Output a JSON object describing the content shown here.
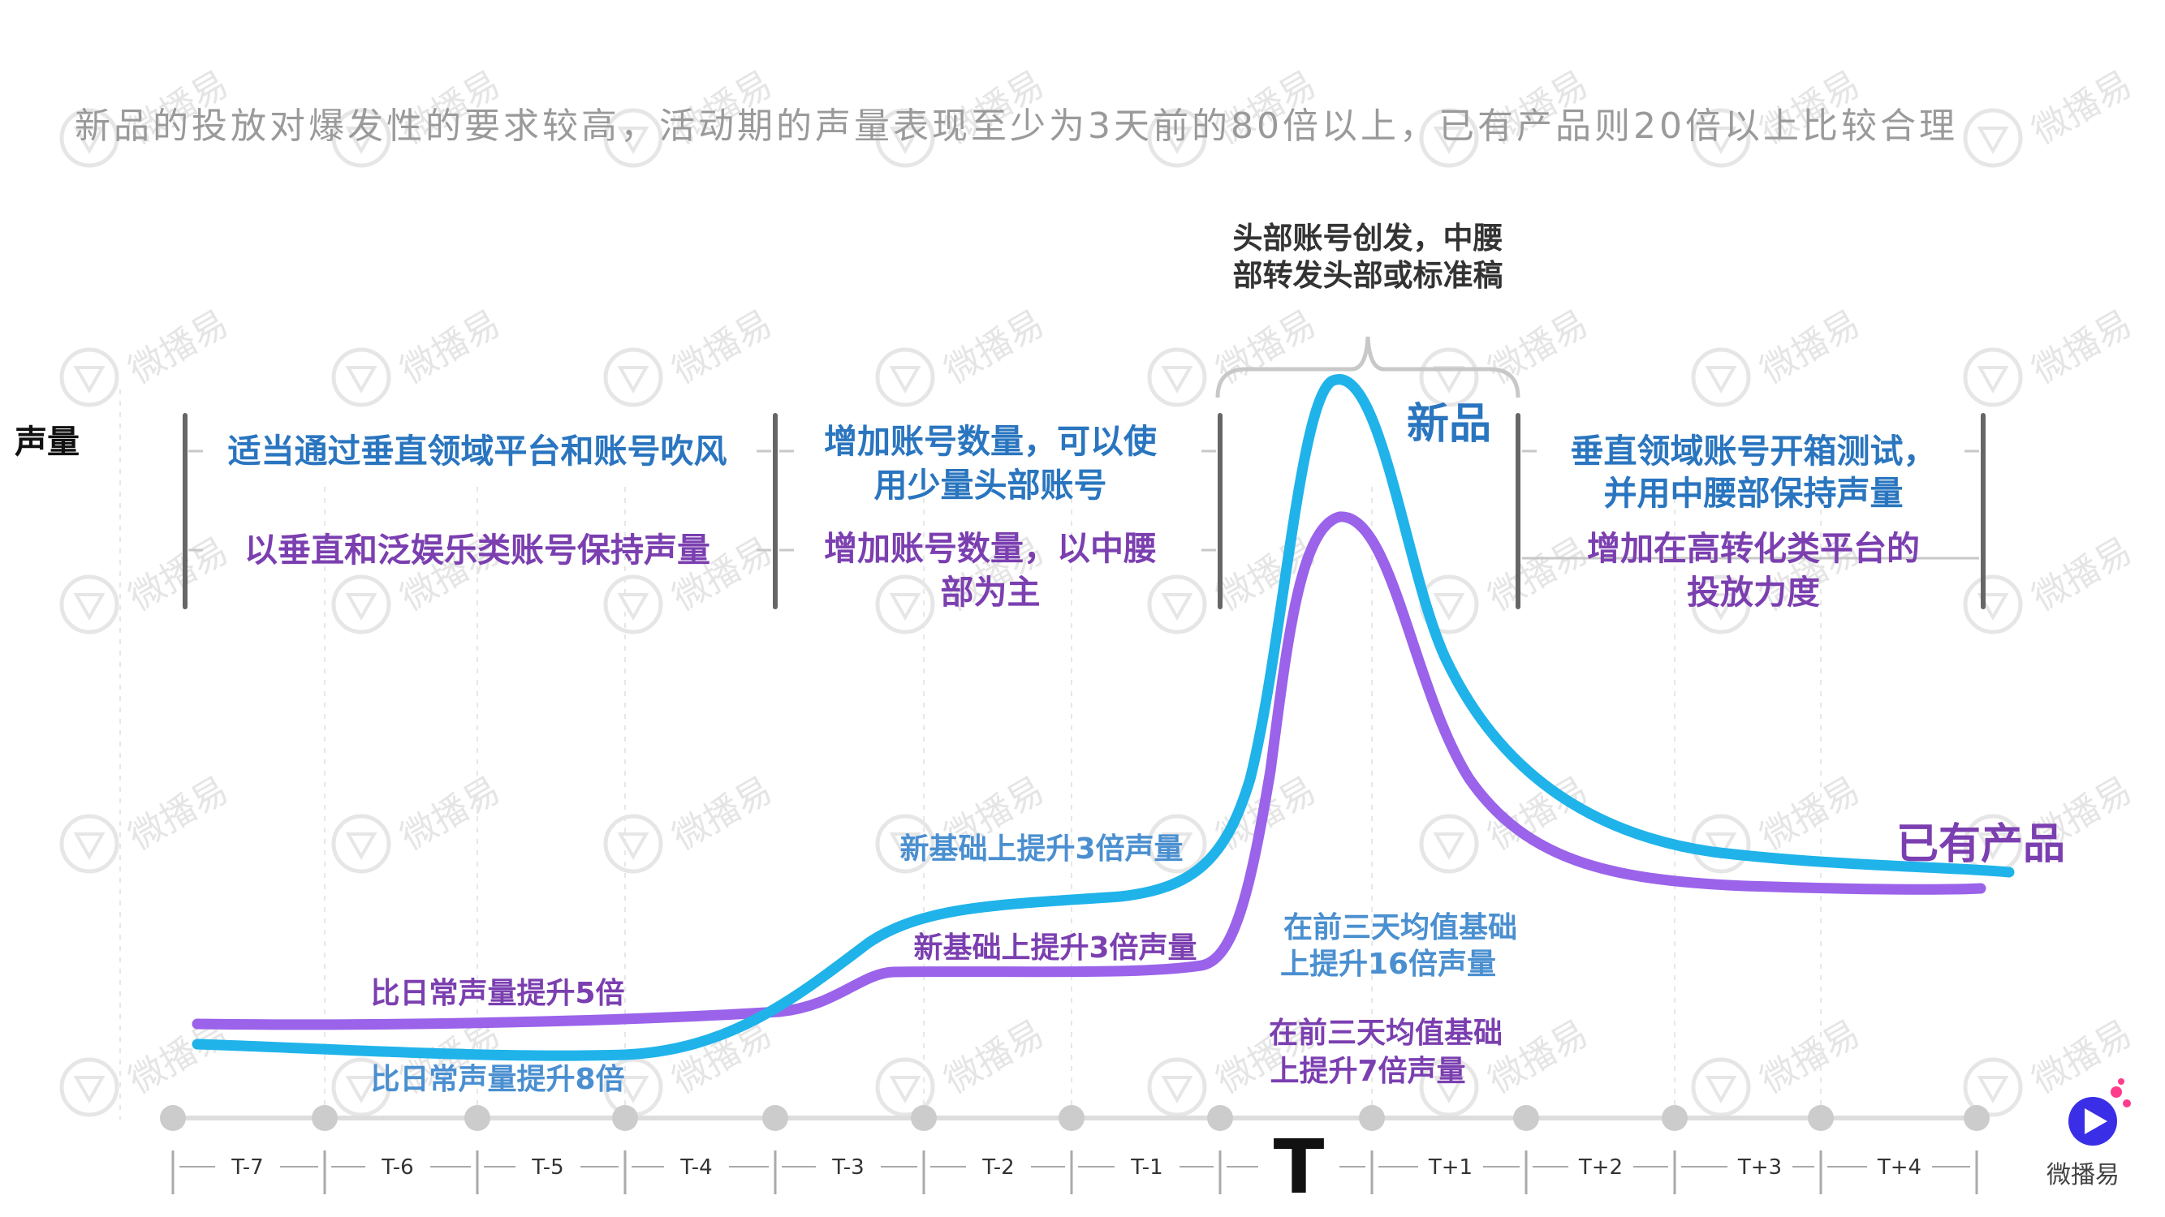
{
  "headline": "新品的投放对爆发性的要求较高，活动期的声量表现至少为3天前的80倍以上，已有产品则20倍以上比较合理",
  "y_axis_label": "声量",
  "peak_note": [
    "头部账号创发，中腰",
    "部转发头部或标准稿"
  ],
  "phases": [
    {
      "blue": [
        "适当通过垂直领域平台和账号吹风"
      ],
      "purple": [
        "以垂直和泛娱乐类账号保持声量"
      ]
    },
    {
      "blue": [
        "增加账号数量，可以使",
        "用少量头部账号"
      ],
      "purple": [
        "增加账号数量，以中腰",
        "部为主"
      ]
    },
    {
      "blue": [
        "垂直领域账号开箱测试，",
        "并用中腰部保持声量"
      ],
      "purple": [
        "增加在高转化类平台的",
        "投放力度"
      ]
    }
  ],
  "annotations": {
    "new_base": [
      "比日常声量提升8倍"
    ],
    "old_base": [
      "比日常声量提升5倍"
    ],
    "new_pre": [
      "新基础上提升3倍声量"
    ],
    "old_pre": [
      "新基础上提升3倍声量"
    ],
    "new_peak": [
      "在前三天均值基础",
      "上提升16倍声量"
    ],
    "old_peak": [
      "在前三天均值基础",
      "上提升7倍声量"
    ]
  },
  "series_labels": {
    "new": "新品",
    "existing": "已有产品"
  },
  "timeline": [
    "T-7",
    "T-6",
    "T-5",
    "T-4",
    "T-3",
    "T-2",
    "T-1",
    "T",
    "T+1",
    "T+2",
    "T+3",
    "T+4"
  ],
  "logo_text": "微播易",
  "watermark_text": "微播易",
  "colors": {
    "new_product": "#1fb3ea",
    "existing_product": "#9a63ea",
    "blue_text": "#2a75bf",
    "purple_text": "#7b3fb0",
    "light_blue_text": "#4a8fd0",
    "gray_dot": "#cccccc"
  }
}
